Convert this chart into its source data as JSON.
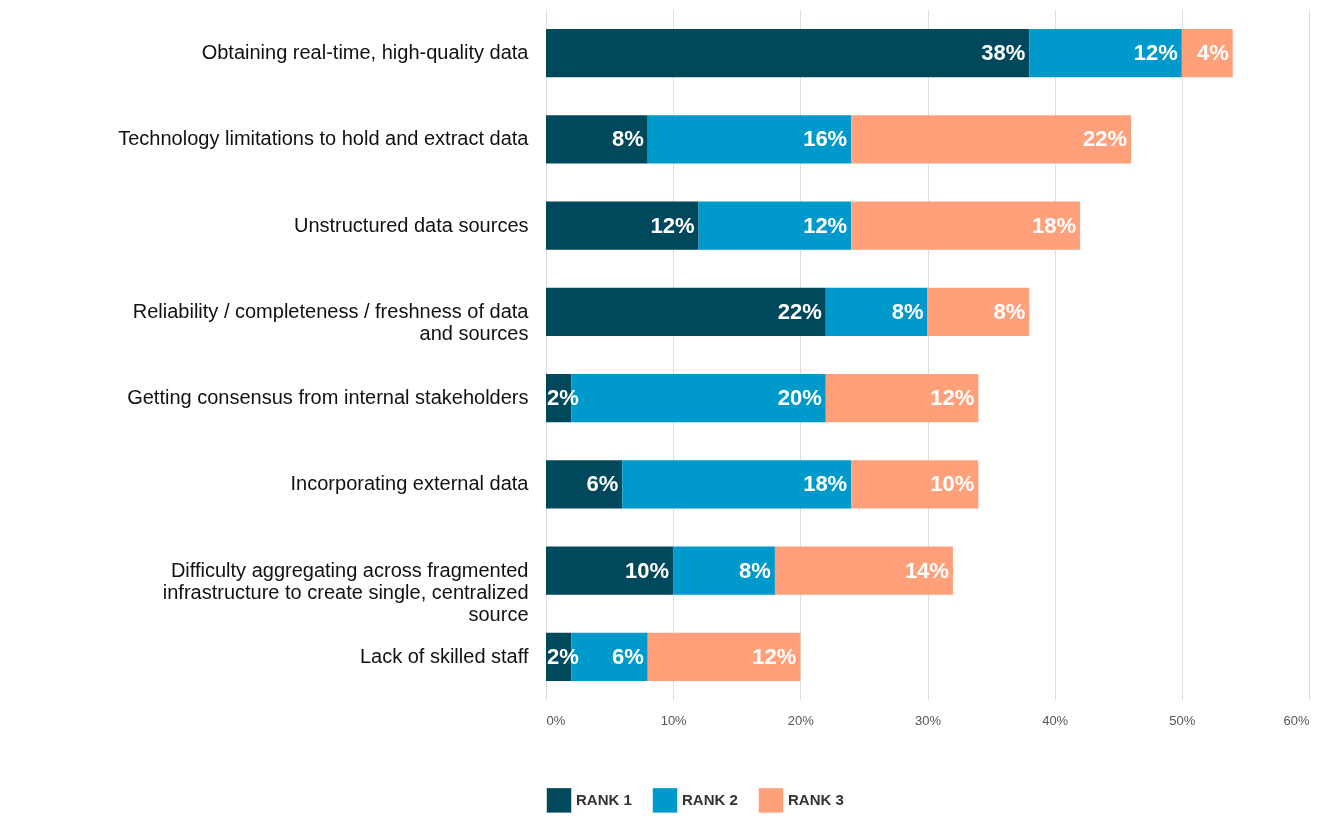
{
  "chart_data": {
    "type": "bar",
    "orientation": "horizontal",
    "stacked": true,
    "data_labels": true,
    "legend": "bottom",
    "grid": "x",
    "categories": [
      "Obtaining real-time, high-quality data",
      "Technology limitations to hold and extract data",
      "Unstructured data sources",
      "Reliability / completeness / freshness of data and sources",
      "Getting consensus from internal stakeholders",
      "Incorporating external data",
      "Difficulty aggregating across fragmented infrastructure to create single, centralized source",
      "Lack of skilled staff"
    ],
    "series": [
      {
        "name": "RANK 1",
        "color": "#00485c",
        "values": [
          38,
          8,
          12,
          22,
          2,
          6,
          10,
          2
        ],
        "value_labels": [
          "38%",
          "8%",
          "12%",
          "22%",
          "2%",
          "6%",
          "10%",
          "2%"
        ]
      },
      {
        "name": "RANK 2",
        "color": "#0099cc",
        "values": [
          12,
          16,
          12,
          8,
          20,
          18,
          8,
          6
        ],
        "value_labels": [
          "12%",
          "16%",
          "12%",
          "8%",
          "20%",
          "18%",
          "8%",
          "6%"
        ]
      },
      {
        "name": "RANK 3",
        "color": "#ffa07a",
        "values": [
          4,
          22,
          18,
          8,
          12,
          10,
          14,
          12
        ],
        "value_labels": [
          "4%",
          "22%",
          "18%",
          "8%",
          "12%",
          "10%",
          "14%",
          "12%"
        ]
      }
    ],
    "xlim": [
      0,
      60
    ],
    "xticks": [
      {
        "value": 0,
        "label": "0%"
      },
      {
        "value": 10,
        "label": "10%"
      },
      {
        "value": 20,
        "label": "20%"
      },
      {
        "value": 30,
        "label": "30%"
      },
      {
        "value": 40,
        "label": "40%"
      },
      {
        "value": 50,
        "label": "50%"
      },
      {
        "value": 60,
        "label": "60%"
      }
    ]
  }
}
